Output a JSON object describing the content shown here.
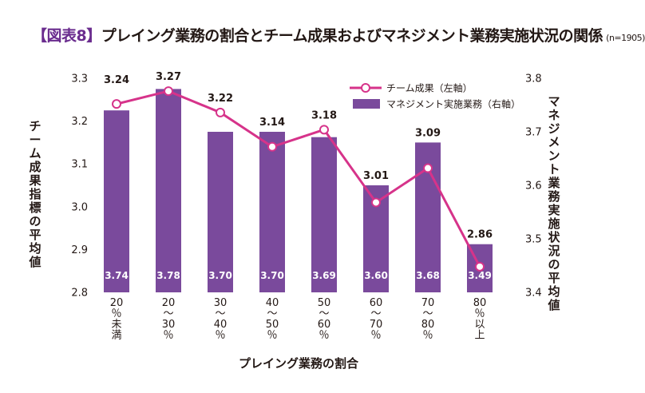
{
  "header": {
    "figure_label": "【図表8】",
    "title": "プレイング業務の割合とチーム成果およびマネジメント業務実施状況の関係",
    "sample_note": "(n=1905)"
  },
  "chart_data": {
    "type": "bar+line",
    "categories": [
      [
        "20",
        "％",
        "未",
        "満"
      ],
      [
        "20",
        "〜",
        "30",
        "％"
      ],
      [
        "30",
        "〜",
        "40",
        "％"
      ],
      [
        "40",
        "〜",
        "50",
        "％"
      ],
      [
        "50",
        "〜",
        "60",
        "％"
      ],
      [
        "60",
        "〜",
        "70",
        "％"
      ],
      [
        "70",
        "〜",
        "80",
        "％"
      ],
      [
        "80",
        "％",
        "以",
        "上"
      ]
    ],
    "series": [
      {
        "name": "チーム成果（左軸）",
        "type": "line",
        "axis": "left",
        "values": [
          3.24,
          3.27,
          3.22,
          3.14,
          3.18,
          3.01,
          3.09,
          2.86
        ],
        "labels": [
          "3.24",
          "3.27",
          "3.22",
          "3.14",
          "3.18",
          "3.01",
          "3.09",
          "2.86"
        ],
        "color": "#d6338a"
      },
      {
        "name": "マネジメント実施業務（右軸）",
        "type": "bar",
        "axis": "right",
        "values": [
          3.74,
          3.78,
          3.7,
          3.7,
          3.69,
          3.6,
          3.68,
          3.49
        ],
        "labels": [
          "3.74",
          "3.78",
          "3.70",
          "3.70",
          "3.69",
          "3.60",
          "3.68",
          "3.49"
        ],
        "color": "#7a4a9c"
      }
    ],
    "left_axis": {
      "title": "チーム成果指標の平均値",
      "range": [
        2.8,
        3.3
      ],
      "ticks": [
        "2.8",
        "2.9",
        "3.0",
        "3.1",
        "3.2",
        "3.3"
      ]
    },
    "right_axis": {
      "title": "マネジメント業務実施状況の平均値",
      "range": [
        3.4,
        3.8
      ],
      "ticks": [
        "3.4",
        "3.5",
        "3.6",
        "3.7",
        "3.8"
      ]
    },
    "xlabel": "プレイング業務の割合",
    "grid": false,
    "legend_position": "top-right"
  }
}
